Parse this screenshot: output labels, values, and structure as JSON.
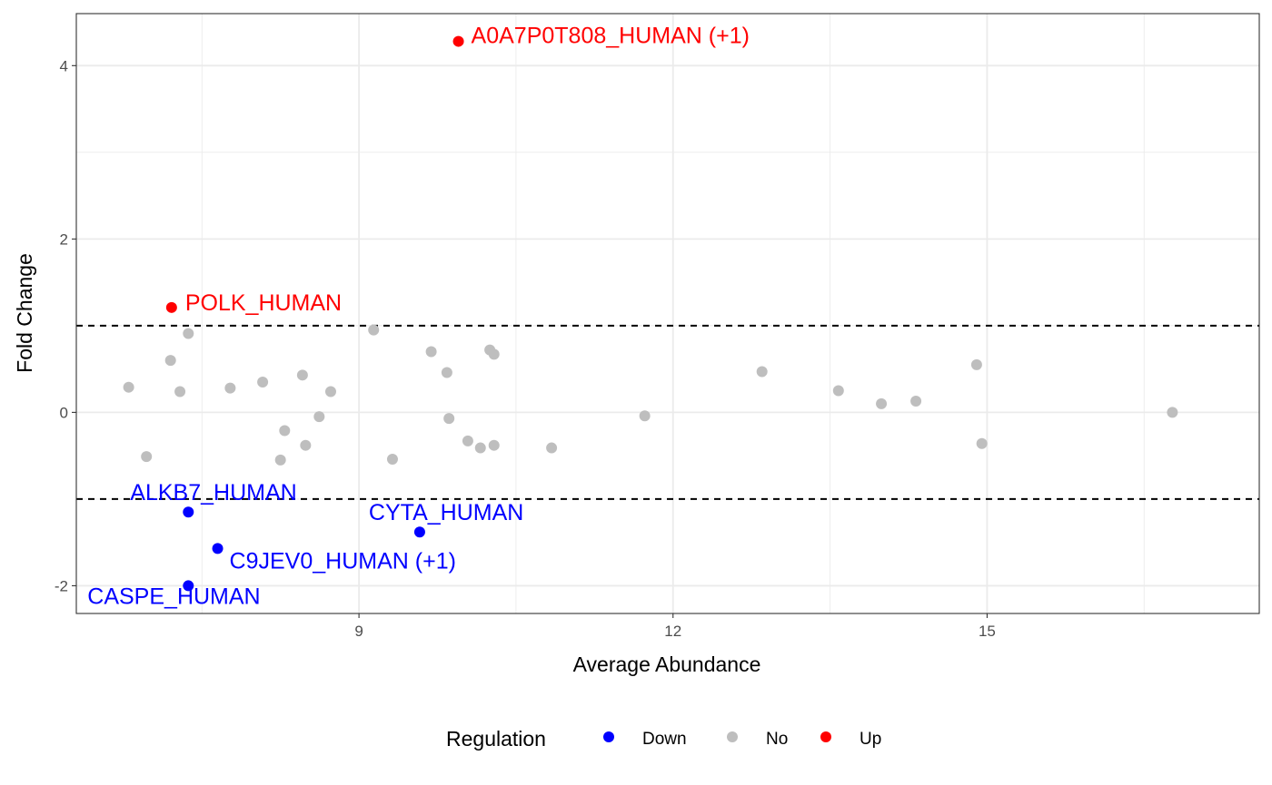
{
  "chart_data": {
    "type": "scatter",
    "xlabel": "Average Abundance",
    "ylabel": "Fold Change",
    "xlim": [
      6.3,
      17.6
    ],
    "ylim": [
      -2.32,
      4.6
    ],
    "x_ticks": [
      9,
      12,
      15
    ],
    "y_ticks": [
      -2,
      0,
      2,
      4
    ],
    "x_tick_labels": [
      "9",
      "12",
      "15"
    ],
    "y_tick_labels": [
      "-2",
      "0",
      "2",
      "4"
    ],
    "grid": true,
    "thresholds": [
      1,
      -1
    ],
    "legend": {
      "title": "Regulation",
      "position": "bottom",
      "entries": [
        {
          "name": "Down",
          "color": "#0000ff"
        },
        {
          "name": "No",
          "color": "#bebebe"
        },
        {
          "name": "Up",
          "color": "#ff0000"
        }
      ]
    },
    "series": [
      {
        "name": "Down",
        "color": "#0000ff",
        "points": [
          {
            "x": 7.37,
            "y": -1.15,
            "label": "ALKB7_HUMAN"
          },
          {
            "x": 7.65,
            "y": -1.57,
            "label": "C9JEV0_HUMAN (+1)"
          },
          {
            "x": 7.37,
            "y": -2.0,
            "label": "CASPE_HUMAN"
          },
          {
            "x": 9.58,
            "y": -1.38,
            "label": "CYTA_HUMAN"
          }
        ]
      },
      {
        "name": "No",
        "color": "#bebebe",
        "points": [
          {
            "x": 6.8,
            "y": 0.29
          },
          {
            "x": 6.97,
            "y": -0.51
          },
          {
            "x": 7.2,
            "y": 0.6
          },
          {
            "x": 7.29,
            "y": 0.24
          },
          {
            "x": 7.37,
            "y": 0.91
          },
          {
            "x": 7.77,
            "y": 0.28
          },
          {
            "x": 8.08,
            "y": 0.35
          },
          {
            "x": 8.25,
            "y": -0.55
          },
          {
            "x": 8.29,
            "y": -0.21
          },
          {
            "x": 8.46,
            "y": 0.43
          },
          {
            "x": 8.49,
            "y": -0.38
          },
          {
            "x": 8.62,
            "y": -0.05
          },
          {
            "x": 8.73,
            "y": 0.24
          },
          {
            "x": 9.14,
            "y": 0.95
          },
          {
            "x": 9.32,
            "y": -0.54
          },
          {
            "x": 9.69,
            "y": 0.7
          },
          {
            "x": 9.84,
            "y": 0.46
          },
          {
            "x": 9.86,
            "y": -0.07
          },
          {
            "x": 10.04,
            "y": -0.33
          },
          {
            "x": 10.16,
            "y": -0.41
          },
          {
            "x": 10.25,
            "y": 0.72
          },
          {
            "x": 10.29,
            "y": 0.67
          },
          {
            "x": 10.29,
            "y": -0.38
          },
          {
            "x": 10.84,
            "y": -0.41
          },
          {
            "x": 11.73,
            "y": -0.04
          },
          {
            "x": 12.85,
            "y": 0.47
          },
          {
            "x": 13.58,
            "y": 0.25
          },
          {
            "x": 13.99,
            "y": 0.1
          },
          {
            "x": 14.32,
            "y": 0.13
          },
          {
            "x": 14.9,
            "y": 0.55
          },
          {
            "x": 14.95,
            "y": -0.36
          },
          {
            "x": 16.77,
            "y": 0.0
          }
        ]
      },
      {
        "name": "Up",
        "color": "#ff0000",
        "points": [
          {
            "x": 9.95,
            "y": 4.28,
            "label": "A0A7P0T808_HUMAN (+1)"
          },
          {
            "x": 7.21,
            "y": 1.21,
            "label": "POLK_HUMAN"
          }
        ]
      }
    ]
  }
}
